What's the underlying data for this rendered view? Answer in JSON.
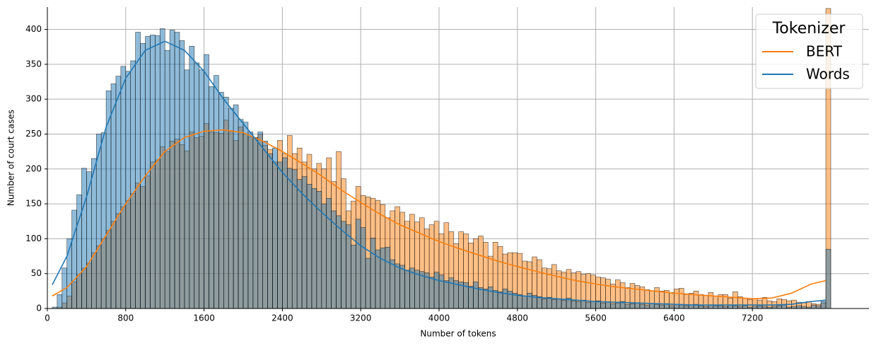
{
  "chart_data": {
    "type": "histogram",
    "xlabel": "Number of tokens",
    "ylabel": "Number of court cases",
    "legend_title": "Tokenizer",
    "legend": "upper right",
    "grid": true,
    "xlim": [
      0,
      8390
    ],
    "xticks": [
      0,
      800,
      1600,
      2400,
      3200,
      4000,
      4800,
      5600,
      6400,
      7200
    ],
    "ylim": [
      0,
      432
    ],
    "yticks": [
      0,
      50,
      100,
      150,
      200,
      250,
      300,
      350,
      400
    ],
    "bins": [
      50,
      100,
      150,
      200,
      250,
      300,
      350,
      400,
      450,
      500,
      550,
      600,
      650,
      700,
      750,
      800,
      850,
      900,
      950,
      1000,
      1050,
      1100,
      1150,
      1200,
      1250,
      1300,
      1350,
      1400,
      1450,
      1500,
      1550,
      1600,
      1650,
      1700,
      1750,
      1800,
      1850,
      1900,
      1950,
      2000,
      2050,
      2100,
      2150,
      2200,
      2250,
      2300,
      2350,
      2400,
      2450,
      2500,
      2550,
      2600,
      2650,
      2700,
      2750,
      2800,
      2850,
      2900,
      2950,
      3000,
      3050,
      3100,
      3150,
      3200,
      3250,
      3300,
      3350,
      3400,
      3450,
      3500,
      3550,
      3600,
      3650,
      3700,
      3750,
      3800,
      3850,
      3900,
      3950,
      4000,
      4050,
      4100,
      4150,
      4200,
      4250,
      4300,
      4350,
      4400,
      4450,
      4500,
      4550,
      4600,
      4650,
      4700,
      4750,
      4800,
      4850,
      4900,
      4950,
      5000,
      5050,
      5100,
      5150,
      5200,
      5250,
      5300,
      5350,
      5400,
      5450,
      5500,
      5550,
      5600,
      5650,
      5700,
      5750,
      5800,
      5850,
      5900,
      5950,
      6000,
      6050,
      6100,
      6150,
      6200,
      6250,
      6300,
      6350,
      6400,
      6450,
      6500,
      6550,
      6600,
      6650,
      6700,
      6750,
      6800,
      6850,
      6900,
      6950,
      7000,
      7050,
      7100,
      7150,
      7200,
      7250,
      7300,
      7350,
      7400,
      7450,
      7500,
      7550,
      7600,
      7650,
      7700,
      7750,
      7800,
      7850,
      7900,
      7950,
      8000
    ],
    "series": [
      {
        "name": "BERT",
        "color": "#ff7f0e",
        "values": [
          0,
          2,
          8,
          18,
          38,
          48,
          58,
          65,
          80,
          90,
          100,
          112,
          125,
          136,
          146,
          155,
          165,
          180,
          175,
          190,
          210,
          213,
          232,
          225,
          240,
          243,
          235,
          226,
          253,
          245,
          247,
          265,
          253,
          252,
          251,
          270,
          255,
          241,
          260,
          250,
          246,
          245,
          250,
          234,
          228,
          210,
          241,
          222,
          248,
          222,
          230,
          210,
          221,
          200,
          208,
          200,
          216,
          182,
          225,
          186,
          140,
          154,
          175,
          162,
          160,
          158,
          155,
          149,
          130,
          140,
          146,
          138,
          125,
          135,
          124,
          130,
          114,
          120,
          125,
          107,
          123,
          110,
          93,
          110,
          107,
          94,
          100,
          104,
          95,
          75,
          95,
          89,
          78,
          80,
          80,
          79,
          68,
          67,
          74,
          70,
          58,
          57,
          63,
          54,
          52,
          56,
          51,
          53,
          49,
          50,
          48,
          45,
          44,
          42,
          35,
          41,
          37,
          30,
          36,
          33,
          31,
          27,
          25,
          30,
          25,
          26,
          23,
          28,
          29,
          20,
          22,
          25,
          20,
          19,
          23,
          18,
          20,
          20,
          15,
          24,
          17,
          15,
          13,
          14,
          12,
          16,
          11,
          10,
          14,
          13,
          11,
          12,
          9,
          8,
          10,
          7,
          6,
          8,
          430
        ],
        "kde": {
          "x": [
            50,
            200,
            400,
            600,
            800,
            1000,
            1200,
            1400,
            1600,
            1800,
            2000,
            2200,
            2400,
            2600,
            2800,
            3000,
            3200,
            3400,
            3600,
            3800,
            4000,
            4200,
            4400,
            4600,
            4800,
            5000,
            5200,
            5400,
            5600,
            5800,
            6000,
            6200,
            6400,
            6600,
            6800,
            7000,
            7200,
            7400,
            7600,
            7800,
            7950
          ],
          "values": [
            18,
            30,
            60,
            105,
            150,
            190,
            225,
            245,
            254,
            256,
            252,
            240,
            225,
            208,
            190,
            170,
            152,
            135,
            120,
            108,
            96,
            86,
            77,
            68,
            60,
            53,
            46,
            40,
            35,
            31,
            28,
            25,
            22,
            20,
            18,
            16,
            14,
            15,
            22,
            35,
            40
          ]
        }
      },
      {
        "name": "Words",
        "color": "#1f77b4",
        "values": [
          2,
          20,
          58,
          100,
          141,
          163,
          201,
          196,
          215,
          250,
          252,
          312,
          322,
          333,
          347,
          340,
          355,
          396,
          380,
          390,
          392,
          391,
          401,
          370,
          399,
          396,
          384,
          342,
          376,
          352,
          342,
          364,
          318,
          334,
          310,
          303,
          287,
          292,
          271,
          267,
          253,
          245,
          253,
          240,
          222,
          230,
          210,
          216,
          201,
          199,
          185,
          189,
          178,
          172,
          168,
          150,
          158,
          140,
          133,
          125,
          120,
          91,
          128,
          116,
          72,
          101,
          84,
          87,
          88,
          70,
          64,
          62,
          55,
          58,
          55,
          53,
          51,
          45,
          52,
          48,
          40,
          44,
          40,
          38,
          37,
          32,
          38,
          30,
          28,
          31,
          26,
          24,
          28,
          25,
          22,
          20,
          18,
          22,
          19,
          17,
          14,
          16,
          13,
          14,
          12,
          15,
          11,
          10,
          12,
          9,
          10,
          11,
          8,
          9,
          7,
          8,
          10,
          6,
          7,
          8,
          6,
          5,
          7,
          6,
          5,
          7,
          4,
          6,
          5,
          4,
          5,
          6,
          4,
          3,
          5,
          4,
          4,
          3,
          5,
          4,
          3,
          4,
          2,
          3,
          4,
          3,
          2,
          3,
          4,
          5,
          2,
          3,
          4,
          3,
          2,
          5,
          4,
          10,
          85
        ],
        "kde": {
          "x": [
            50,
            200,
            400,
            600,
            800,
            1000,
            1200,
            1400,
            1600,
            1800,
            2000,
            2200,
            2400,
            2600,
            2800,
            3000,
            3200,
            3400,
            3600,
            3800,
            4000,
            4200,
            4400,
            4600,
            4800,
            5000,
            5200,
            5400,
            5600,
            5800,
            6000,
            6200,
            6400,
            6600,
            6800,
            7000,
            7200,
            7400,
            7600,
            7800,
            7950
          ],
          "values": [
            34,
            75,
            160,
            260,
            330,
            370,
            383,
            370,
            340,
            300,
            265,
            230,
            195,
            165,
            138,
            113,
            90,
            72,
            58,
            48,
            40,
            34,
            28,
            23,
            19,
            16,
            14,
            12,
            10,
            9,
            8,
            7,
            6,
            5,
            5,
            5,
            5,
            5,
            6,
            10,
            12
          ]
        }
      }
    ]
  }
}
